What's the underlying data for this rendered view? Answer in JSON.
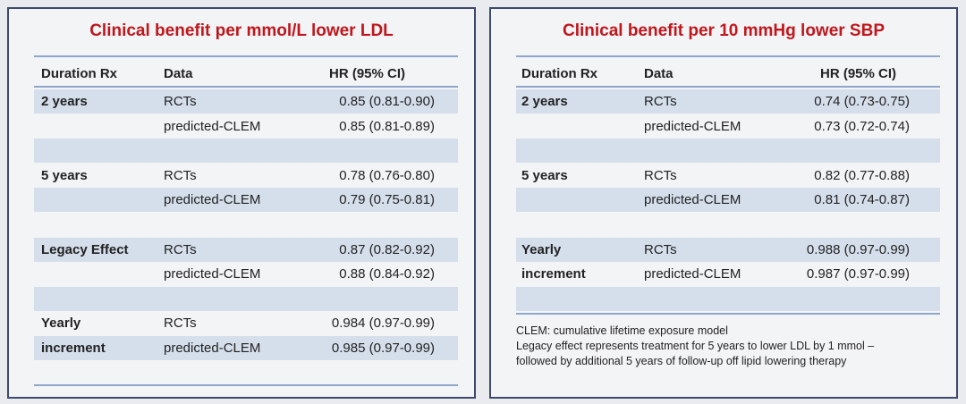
{
  "left": {
    "title": "Clinical benefit per mmol/L lower LDL",
    "headers": {
      "duration": "Duration Rx",
      "data": "Data",
      "hr": "HR (95% CI)"
    },
    "rows": [
      {
        "duration": "2 years",
        "data": "RCTs",
        "hr": "0.85 (0.81-0.90)",
        "shade": true
      },
      {
        "duration": "",
        "data": "predicted-CLEM",
        "hr": "0.85 (0.81-0.89)",
        "shade": false
      },
      {
        "duration": "",
        "data": "",
        "hr": "",
        "shade": true
      },
      {
        "duration": "5 years",
        "data": "RCTs",
        "hr": "0.78 (0.76-0.80)",
        "shade": false
      },
      {
        "duration": "",
        "data": "predicted-CLEM",
        "hr": "0.79 (0.75-0.81)",
        "shade": true
      },
      {
        "duration": "",
        "data": "",
        "hr": "",
        "shade": false
      },
      {
        "duration": "Legacy Effect",
        "data": "RCTs",
        "hr": "0.87 (0.82-0.92)",
        "shade": true
      },
      {
        "duration": "",
        "data": "predicted-CLEM",
        "hr": "0.88 (0.84-0.92)",
        "shade": false
      },
      {
        "duration": "",
        "data": "",
        "hr": "",
        "shade": true
      },
      {
        "duration": "Yearly",
        "data": "RCTs",
        "hr": "0.984 (0.97-0.99)",
        "shade": false
      },
      {
        "duration": "increment",
        "data": "predicted-CLEM",
        "hr": "0.985 (0.97-0.99)",
        "shade": true
      }
    ]
  },
  "right": {
    "title": "Clinical benefit per 10 mmHg lower SBP",
    "headers": {
      "duration": "Duration Rx",
      "data": "Data",
      "hr": "HR (95% CI)"
    },
    "rows": [
      {
        "duration": "2 years",
        "data": "RCTs",
        "hr": "0.74 (0.73-0.75)",
        "shade": true
      },
      {
        "duration": "",
        "data": "predicted-CLEM",
        "hr": "0.73 (0.72-0.74)",
        "shade": false
      },
      {
        "duration": "",
        "data": "",
        "hr": "",
        "shade": true
      },
      {
        "duration": "5 years",
        "data": "RCTs",
        "hr": "0.82 (0.77-0.88)",
        "shade": false
      },
      {
        "duration": "",
        "data": "predicted-CLEM",
        "hr": "0.81 (0.74-0.87)",
        "shade": true
      },
      {
        "duration": "",
        "data": "",
        "hr": "",
        "shade": false
      },
      {
        "duration": "Yearly",
        "data": "RCTs",
        "hr": "0.988 (0.97-0.99)",
        "shade": true
      },
      {
        "duration": "increment",
        "data": "predicted-CLEM",
        "hr": "0.987 (0.97-0.99)",
        "shade": false
      },
      {
        "duration": "",
        "data": "",
        "hr": "",
        "shade": true
      }
    ],
    "notes": [
      "CLEM: cumulative lifetime exposure model",
      "Legacy effect represents treatment for 5 years to lower LDL by 1 mmol –",
      "followed by additional 5 years of follow-up off lipid lowering therapy"
    ]
  }
}
